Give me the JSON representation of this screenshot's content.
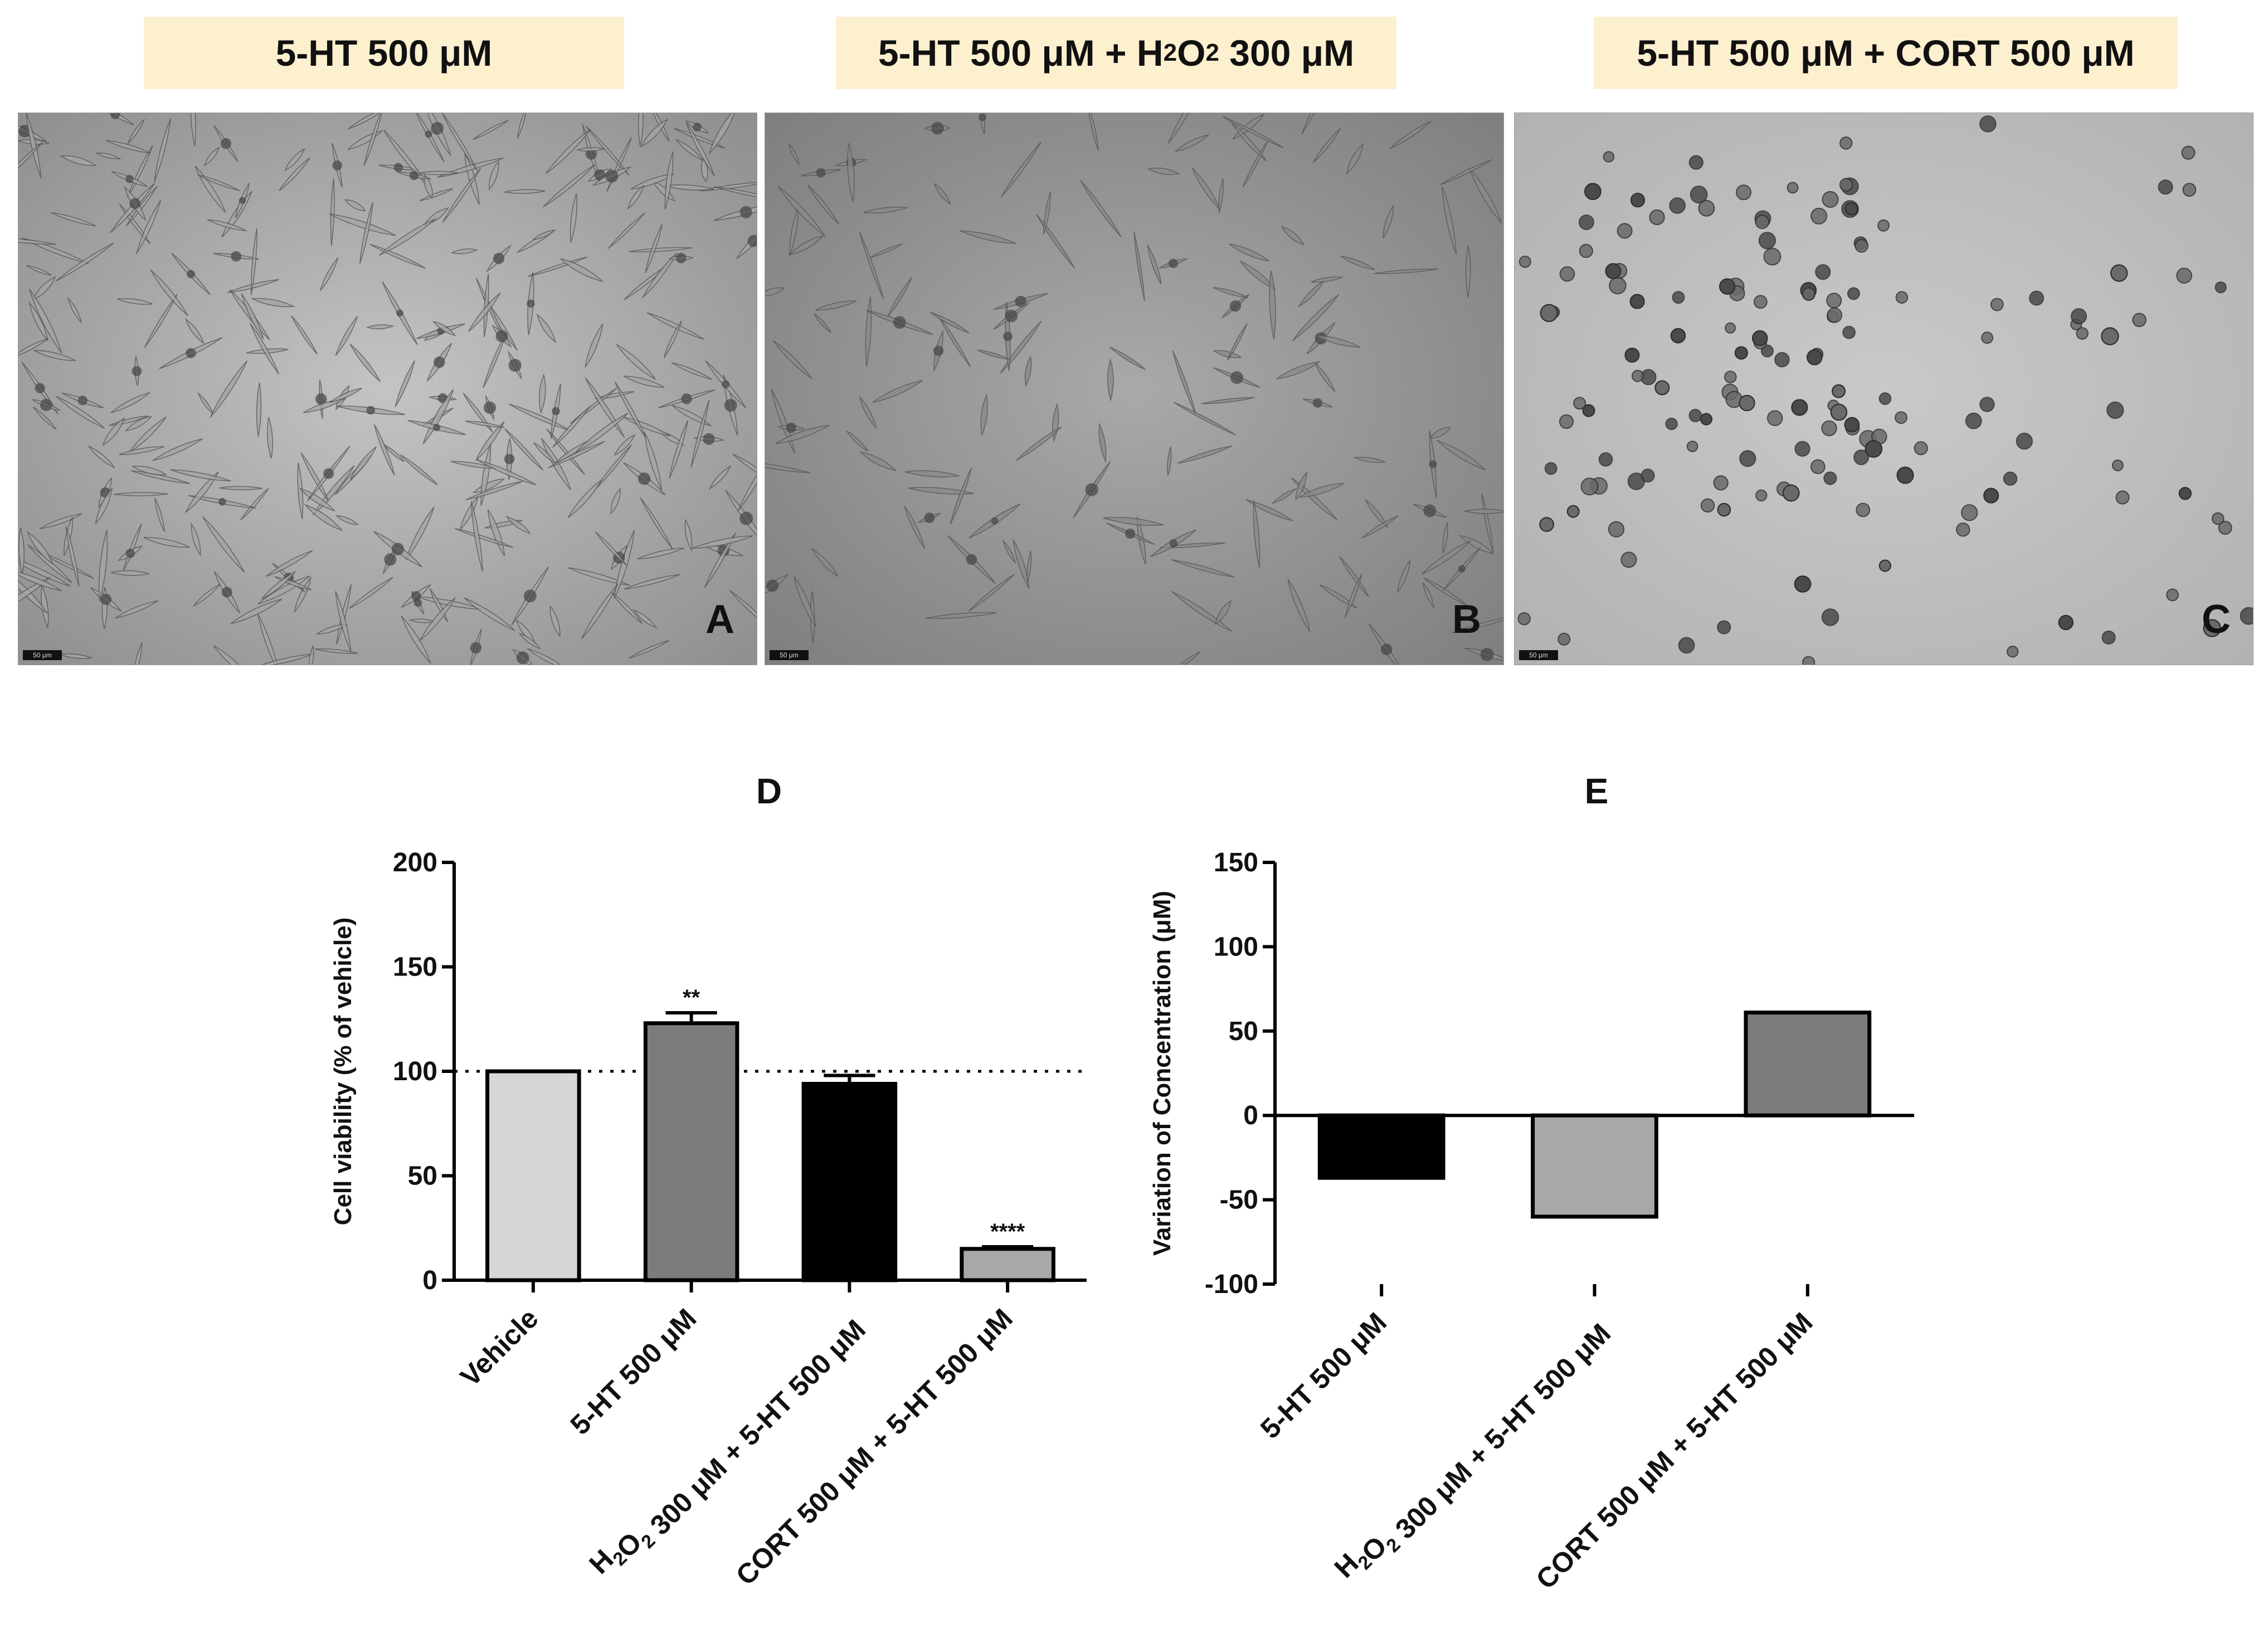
{
  "panels": {
    "a": {
      "title_main": "5-HT 500 μM",
      "letter": "A",
      "scale_bar": "50 μm",
      "texture": "dense-spindle"
    },
    "b": {
      "title_pre": "5-HT 500 μM + H",
      "title_sub1": "2",
      "title_mid": "O",
      "title_sub2": "2",
      "title_post": " 300 μM",
      "letter": "B",
      "scale_bar": "50 μm",
      "texture": "sparse-spindle"
    },
    "c": {
      "title_main": "5-HT 500 μM + CORT 500 μM",
      "letter": "C",
      "scale_bar": "50 μm",
      "texture": "round-cells"
    }
  },
  "colors": {
    "title_bg": "#fdf0cf",
    "bar_light": "#d6d6d6",
    "bar_mid": "#7c7c7c",
    "bar_black": "#000000",
    "bar_gray": "#a8a8a8"
  },
  "chart_data": [
    {
      "type": "bar",
      "title": "D",
      "ylabel": "Cell viability (% of vehicle)",
      "xlabel": "",
      "ylim": [
        0,
        200
      ],
      "yticks": [
        0,
        50,
        100,
        150,
        200
      ],
      "reference_line": 100,
      "categories": [
        {
          "parts": [
            {
              "t": "Vehicle"
            }
          ]
        },
        {
          "parts": [
            {
              "t": "5-HT 500 μM"
            }
          ]
        },
        {
          "parts": [
            {
              "t": "H"
            },
            {
              "t": "2",
              "sub": true
            },
            {
              "t": "O"
            },
            {
              "t": "2",
              "sub": true
            },
            {
              "t": " 300 μM + 5-HT 500 μM"
            }
          ]
        },
        {
          "parts": [
            {
              "t": "CORT 500 μM + 5-HT 500 μM"
            }
          ]
        }
      ],
      "values": [
        100,
        123,
        94,
        15
      ],
      "errors": [
        0,
        5,
        4,
        1
      ],
      "significance": [
        "",
        "**",
        "",
        "****"
      ],
      "bar_colors": [
        "#d6d6d6",
        "#7c7c7c",
        "#000000",
        "#a8a8a8"
      ]
    },
    {
      "type": "bar",
      "title": "E",
      "ylabel": "Variation of Concentration (μM)",
      "xlabel": "",
      "ylim": [
        -100,
        150
      ],
      "yticks": [
        -100,
        -50,
        0,
        50,
        100,
        150
      ],
      "categories": [
        {
          "parts": [
            {
              "t": "5-HT 500 μM"
            }
          ]
        },
        {
          "parts": [
            {
              "t": "H"
            },
            {
              "t": "2",
              "sub": true
            },
            {
              "t": "O"
            },
            {
              "t": "2",
              "sub": true
            },
            {
              "t": " 300 μM + 5-HT 500 μM"
            }
          ]
        },
        {
          "parts": [
            {
              "t": "CORT 500 μM + 5-HT 500 μM"
            }
          ]
        }
      ],
      "values": [
        -37,
        -60,
        61
      ],
      "bar_colors": [
        "#000000",
        "#a8a8a8",
        "#7c7c7c"
      ]
    }
  ]
}
